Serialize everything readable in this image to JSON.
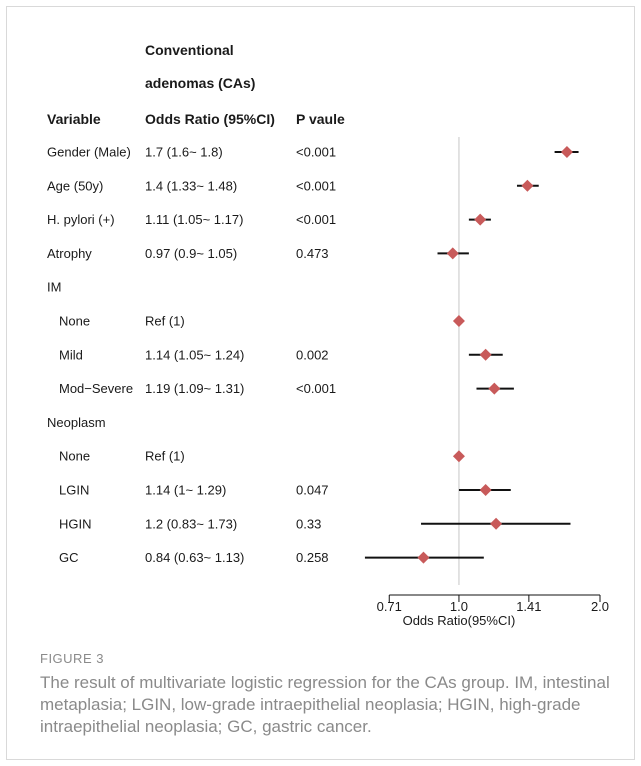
{
  "chart_data": {
    "type": "forest",
    "group_header": [
      "Conventional",
      "adenomas (CAs)"
    ],
    "columns": {
      "variable": "Variable",
      "or": "Odds Ratio (95%CI)",
      "p": "P vaule"
    },
    "xlabel": "Odds Ratio(95%CI)",
    "x_scale": "log",
    "xlim": [
      0.6,
      2.0
    ],
    "ticks": [
      {
        "value": 0.71,
        "label": "0.71"
      },
      {
        "value": 1.0,
        "label": "1.0"
      },
      {
        "value": 1.41,
        "label": "1.41"
      },
      {
        "value": 2.0,
        "label": "2.0"
      }
    ],
    "reference_line": 1.0,
    "rows": [
      {
        "label": "Gender (Male)",
        "indent": false,
        "or_text": "1.7 (1.6~ 1.8)",
        "p": "<0.001",
        "or": 1.7,
        "lo": 1.6,
        "hi": 1.8
      },
      {
        "label": "Age (50y)",
        "indent": false,
        "or_text": "1.4 (1.33~ 1.48)",
        "p": "<0.001",
        "or": 1.4,
        "lo": 1.33,
        "hi": 1.48
      },
      {
        "label": "H. pylori (+)",
        "indent": false,
        "or_text": "1.11 (1.05~ 1.17)",
        "p": "<0.001",
        "or": 1.11,
        "lo": 1.05,
        "hi": 1.17
      },
      {
        "label": "Atrophy",
        "indent": false,
        "or_text": "0.97 (0.9~ 1.05)",
        "p": "0.473",
        "or": 0.97,
        "lo": 0.9,
        "hi": 1.05
      },
      {
        "label": "IM",
        "indent": false,
        "or_text": "",
        "p": "",
        "or": null,
        "lo": null,
        "hi": null
      },
      {
        "label": "None",
        "indent": true,
        "or_text": "Ref (1)",
        "p": "",
        "or": 1.0,
        "lo": null,
        "hi": null
      },
      {
        "label": "Mild",
        "indent": true,
        "or_text": "1.14 (1.05~ 1.24)",
        "p": "0.002",
        "or": 1.14,
        "lo": 1.05,
        "hi": 1.24
      },
      {
        "label": "Mod−Severe",
        "indent": true,
        "or_text": "1.19 (1.09~ 1.31)",
        "p": "<0.001",
        "or": 1.19,
        "lo": 1.09,
        "hi": 1.31
      },
      {
        "label": "Neoplasm",
        "indent": false,
        "or_text": "",
        "p": "",
        "or": null,
        "lo": null,
        "hi": null
      },
      {
        "label": "None",
        "indent": true,
        "or_text": "Ref (1)",
        "p": "",
        "or": 1.0,
        "lo": null,
        "hi": null
      },
      {
        "label": "LGIN",
        "indent": true,
        "or_text": "1.14 (1~ 1.29)",
        "p": "0.047",
        "or": 1.14,
        "lo": 1.0,
        "hi": 1.29
      },
      {
        "label": "HGIN",
        "indent": true,
        "or_text": "1.2 (0.83~ 1.73)",
        "p": "0.33",
        "or": 1.2,
        "lo": 0.83,
        "hi": 1.73
      },
      {
        "label": "GC",
        "indent": true,
        "or_text": "0.84 (0.63~ 1.13)",
        "p": "0.258",
        "or": 0.84,
        "lo": 0.63,
        "hi": 1.13
      }
    ],
    "colors": {
      "marker": "#c85a5a",
      "ci": "#111111",
      "refline": "#cfcfcf",
      "axis": "#111111"
    }
  },
  "caption": {
    "label": "FIGURE 3",
    "text": "The result of multivariate logistic regression for the CAs group. IM, intestinal metaplasia; LGIN, low-grade intraepithelial neoplasia; HGIN, high-grade intraepithelial neoplasia; GC, gastric cancer."
  }
}
